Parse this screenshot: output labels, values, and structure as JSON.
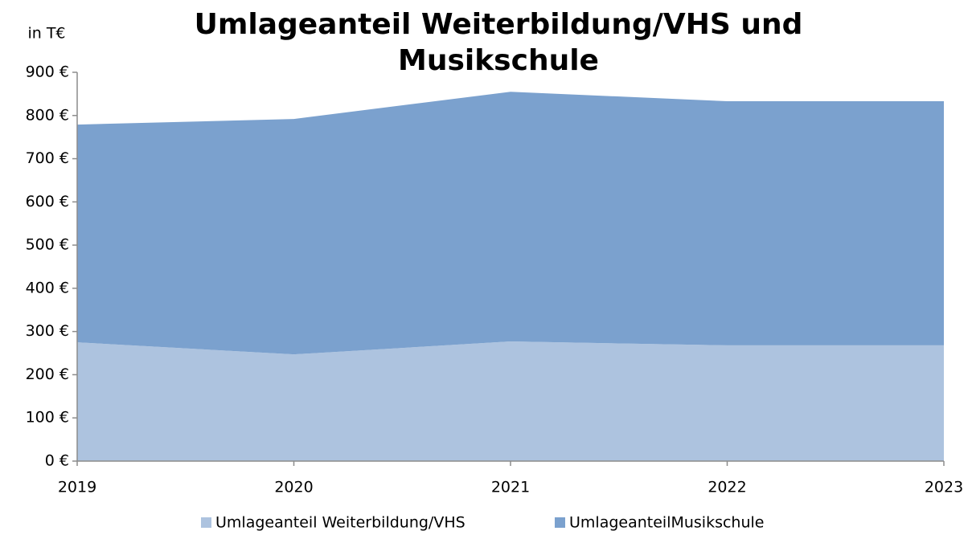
{
  "chart_data": {
    "type": "stacked_area",
    "title": "Umlageanteil Weiterbildung/VHS und Musikschule",
    "y_label": "in T€",
    "categories": [
      "2019",
      "2020",
      "2021",
      "2022",
      "2023"
    ],
    "series": [
      {
        "name": "Umlageanteil Weiterbildung/VHS",
        "color": "#adc3df",
        "values": [
          275,
          247,
          277,
          268,
          268
        ]
      },
      {
        "name": "UmlageanteilMusikschule",
        "color": "#7ba1ce",
        "values": [
          504,
          545,
          578,
          565,
          565
        ]
      }
    ],
    "ylim": [
      0,
      900
    ],
    "yticks": [
      {
        "value": 0,
        "label": "0 €"
      },
      {
        "value": 100,
        "label": "100 €"
      },
      {
        "value": 200,
        "label": "200 €"
      },
      {
        "value": 300,
        "label": "300 €"
      },
      {
        "value": 400,
        "label": "400 €"
      },
      {
        "value": 500,
        "label": "500 €"
      },
      {
        "value": 600,
        "label": "600 €"
      },
      {
        "value": 700,
        "label": "700 €"
      },
      {
        "value": 800,
        "label": "800 €"
      },
      {
        "value": 900,
        "label": "900 €"
      }
    ],
    "grid": false,
    "legend": "bottom"
  }
}
